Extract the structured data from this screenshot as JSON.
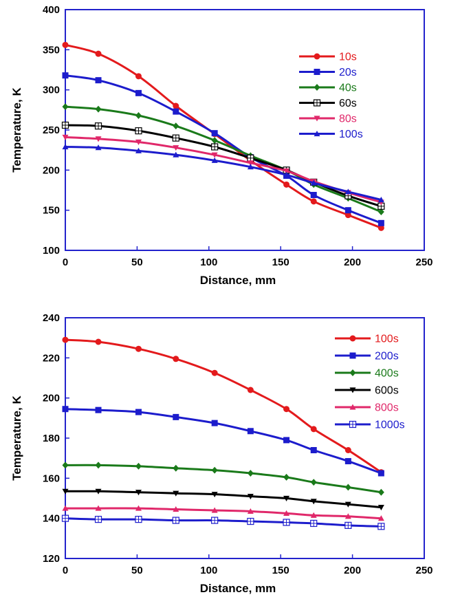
{
  "chart_data": [
    {
      "type": "line",
      "xlabel": "Distance, mm",
      "ylabel": "Temperature, K",
      "xlim": [
        0,
        250
      ],
      "ylim": [
        100,
        400
      ],
      "xticks": [
        "0",
        "50",
        "100",
        "150",
        "200",
        "250"
      ],
      "yticks": [
        "100",
        "150",
        "200",
        "250",
        "300",
        "350",
        "400"
      ],
      "legend_position": "top-right",
      "grid": false,
      "x": [
        0,
        23,
        51,
        77,
        104,
        129,
        154,
        173,
        197,
        220
      ],
      "series": [
        {
          "name": "10s",
          "color": "#e31a1c",
          "marker": "circle",
          "values": [
            356,
            345,
            317,
            280,
            245,
            212,
            182,
            161,
            144,
            128
          ]
        },
        {
          "name": "20s",
          "color": "#1c1ccc",
          "marker": "square",
          "values": [
            318,
            312,
            296,
            273,
            246,
            216,
            193,
            169,
            150,
            134
          ]
        },
        {
          "name": "40s",
          "color": "#1a7a1a",
          "marker": "diamond",
          "values": [
            279,
            276,
            268,
            255,
            237,
            218,
            200,
            182,
            165,
            148
          ]
        },
        {
          "name": "60s",
          "color": "#000000",
          "marker": "square-cross",
          "values": [
            256,
            255,
            249,
            240,
            229,
            215,
            200,
            185,
            168,
            155
          ]
        },
        {
          "name": "80s",
          "color": "#e0286a",
          "marker": "triangle-down",
          "values": [
            241,
            239,
            235,
            228,
            219,
            209,
            199,
            186,
            172,
            160
          ]
        },
        {
          "name": "100s",
          "color": "#1c1ccc",
          "marker": "triangle-up",
          "values": [
            229,
            228,
            224,
            219,
            212,
            204,
            194,
            184,
            173,
            163
          ]
        }
      ]
    },
    {
      "type": "line",
      "xlabel": "Distance, mm",
      "ylabel": "Temperature, K",
      "xlim": [
        0,
        250
      ],
      "ylim": [
        120,
        240
      ],
      "xticks": [
        "0",
        "50",
        "100",
        "150",
        "200",
        "250"
      ],
      "yticks": [
        "120",
        "140",
        "160",
        "180",
        "200",
        "220",
        "240"
      ],
      "legend_position": "top-right",
      "grid": false,
      "x": [
        0,
        23,
        51,
        77,
        104,
        129,
        154,
        173,
        197,
        220
      ],
      "series": [
        {
          "name": "100s",
          "color": "#e31a1c",
          "marker": "circle",
          "values": [
            229,
            228,
            224.5,
            219.5,
            212.5,
            204,
            194.5,
            184.5,
            174,
            163
          ]
        },
        {
          "name": "200s",
          "color": "#1c1ccc",
          "marker": "square",
          "values": [
            194.5,
            194,
            193,
            190.5,
            187.5,
            183.5,
            179,
            174,
            168.5,
            162.5
          ]
        },
        {
          "name": "400s",
          "color": "#1a7a1a",
          "marker": "diamond",
          "values": [
            166.5,
            166.5,
            166,
            165,
            164,
            162.5,
            160.5,
            158,
            155.5,
            153
          ]
        },
        {
          "name": "600s",
          "color": "#000000",
          "marker": "triangle-down",
          "values": [
            153.5,
            153.5,
            153,
            152.5,
            152,
            151,
            150,
            148.5,
            147,
            145.5
          ]
        },
        {
          "name": "800s",
          "color": "#e0286a",
          "marker": "triangle-up",
          "values": [
            145,
            145,
            145,
            144.5,
            144,
            143.5,
            142.5,
            141.5,
            141,
            140
          ]
        },
        {
          "name": "1000s",
          "color": "#1c1ccc",
          "marker": "square-cross",
          "values": [
            140,
            139.5,
            139.5,
            139,
            139,
            138.5,
            138,
            137.5,
            136.5,
            136
          ]
        }
      ]
    }
  ]
}
